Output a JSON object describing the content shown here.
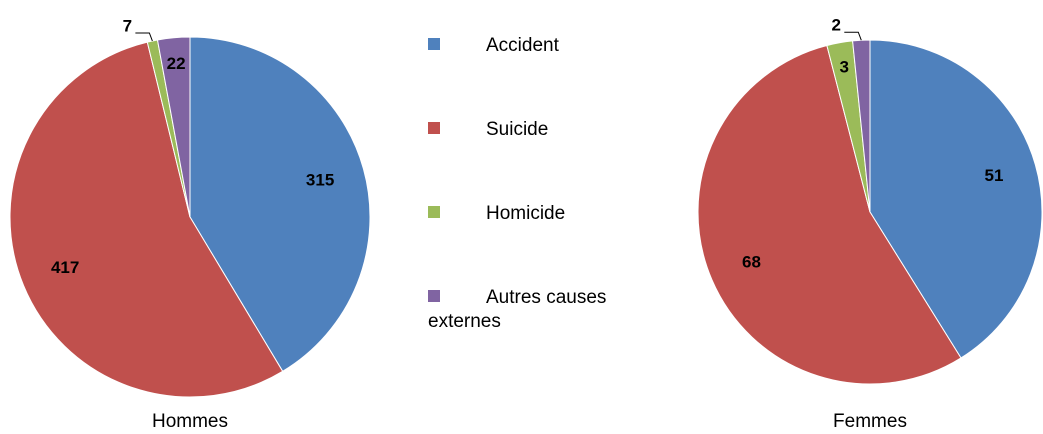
{
  "chart_data": [
    {
      "type": "pie",
      "title": "Hommes",
      "categories": [
        "Accident",
        "Suicide",
        "Homicide",
        "Autres causes externes"
      ],
      "values": [
        315,
        417,
        7,
        22
      ],
      "colors": [
        "#4f81bd",
        "#c0504d",
        "#9bbb59",
        "#8064a2"
      ]
    },
    {
      "type": "pie",
      "title": "Femmes",
      "categories": [
        "Accident",
        "Suicide",
        "Homicide",
        "Autres causes externes"
      ],
      "values": [
        51,
        68,
        3,
        2
      ],
      "colors": [
        "#4f81bd",
        "#c0504d",
        "#9bbb59",
        "#8064a2"
      ]
    }
  ]
}
